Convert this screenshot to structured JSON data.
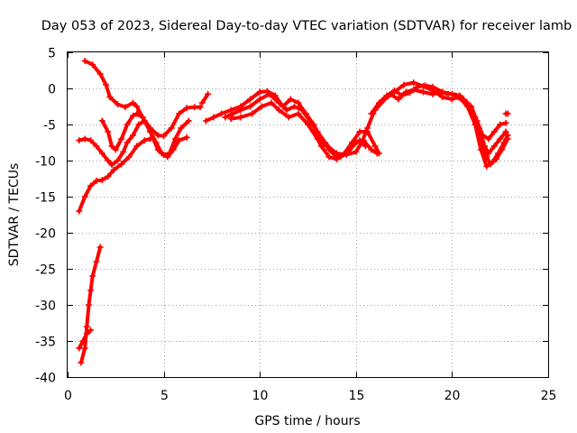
{
  "chart_data": {
    "type": "scatter",
    "title": "Day 053 of 2023, Sidereal Day-to-day VTEC variation (SDTVAR) for receiver lamb",
    "xlabel": "GPS time / hours",
    "ylabel": "SDTVAR / TECUs",
    "xlim": [
      0,
      25
    ],
    "ylim": [
      -40,
      5
    ],
    "xticks": [
      0,
      5,
      10,
      15,
      20,
      25
    ],
    "yticks": [
      5,
      0,
      -5,
      -10,
      -15,
      -20,
      -25,
      -30,
      -35,
      -40
    ],
    "grid": true,
    "color": "#ff0000",
    "marker": "+",
    "series": [
      {
        "name": "s1",
        "points": [
          [
            0.9,
            3.8
          ],
          [
            1.3,
            3.3
          ],
          [
            1.7,
            2.0
          ],
          [
            2.0,
            0.5
          ],
          [
            2.2,
            -1.2
          ],
          [
            2.6,
            -2.2
          ],
          [
            3.0,
            -2.6
          ],
          [
            3.4,
            -2.0
          ],
          [
            3.6,
            -2.5
          ],
          [
            3.9,
            -4.0
          ],
          [
            4.3,
            -5.5
          ],
          [
            4.7,
            -6.5
          ],
          [
            5.0,
            -6.6
          ],
          [
            5.4,
            -5.5
          ],
          [
            5.8,
            -3.5
          ],
          [
            6.2,
            -2.7
          ],
          [
            6.6,
            -2.6
          ],
          [
            6.9,
            -2.6
          ]
        ]
      },
      {
        "name": "s2",
        "points": [
          [
            0.6,
            -17.0
          ],
          [
            0.9,
            -15.0
          ],
          [
            1.2,
            -13.5
          ],
          [
            1.5,
            -12.8
          ],
          [
            1.8,
            -12.7
          ],
          [
            2.1,
            -12.2
          ],
          [
            2.4,
            -11.3
          ],
          [
            2.8,
            -10.5
          ],
          [
            3.2,
            -9.5
          ],
          [
            3.6,
            -8.0
          ],
          [
            4.0,
            -7.2
          ],
          [
            4.3,
            -7.0
          ]
        ]
      },
      {
        "name": "s3",
        "points": [
          [
            0.6,
            -7.2
          ],
          [
            0.9,
            -7.0
          ],
          [
            1.2,
            -7.2
          ],
          [
            1.5,
            -8.0
          ],
          [
            1.8,
            -9.0
          ],
          [
            2.1,
            -10.0
          ],
          [
            2.3,
            -10.6
          ],
          [
            2.6,
            -10.0
          ],
          [
            2.9,
            -8.8
          ],
          [
            3.1,
            -7.5
          ],
          [
            3.4,
            -6.5
          ],
          [
            3.7,
            -5.0
          ],
          [
            4.0,
            -4.5
          ],
          [
            4.3,
            -6.0
          ],
          [
            4.6,
            -7.5
          ],
          [
            4.9,
            -9.0
          ],
          [
            5.2,
            -9.5
          ],
          [
            5.5,
            -8.5
          ],
          [
            5.8,
            -7.2
          ],
          [
            6.2,
            -6.8
          ]
        ]
      },
      {
        "name": "s4",
        "points": [
          [
            1.8,
            -4.5
          ],
          [
            2.1,
            -6.0
          ],
          [
            2.3,
            -8.0
          ],
          [
            2.5,
            -8.5
          ],
          [
            2.8,
            -7.0
          ],
          [
            3.1,
            -5.0
          ],
          [
            3.4,
            -3.8
          ],
          [
            3.6,
            -3.5
          ],
          [
            3.9,
            -4.0
          ],
          [
            4.3,
            -6.0
          ],
          [
            4.7,
            -8.5
          ],
          [
            5.0,
            -9.2
          ],
          [
            5.3,
            -9.0
          ],
          [
            5.6,
            -7.0
          ],
          [
            5.9,
            -5.5
          ],
          [
            6.3,
            -4.5
          ]
        ]
      },
      {
        "name": "s5",
        "points": [
          [
            0.7,
            -38.0
          ],
          [
            0.9,
            -36.0
          ],
          [
            1.0,
            -33.0
          ],
          [
            1.1,
            -30.0
          ],
          [
            1.2,
            -28.0
          ],
          [
            1.3,
            -26.0
          ],
          [
            1.5,
            -24.0
          ],
          [
            1.7,
            -22.0
          ]
        ]
      },
      {
        "name": "s6",
        "points": [
          [
            0.6,
            -36.0
          ],
          [
            0.8,
            -35.0
          ],
          [
            1.0,
            -34.0
          ],
          [
            1.2,
            -33.5
          ]
        ]
      },
      {
        "name": "s7",
        "points": [
          [
            7.0,
            -2.0
          ],
          [
            7.3,
            -0.8
          ]
        ]
      },
      {
        "name": "s8",
        "points": [
          [
            7.2,
            -4.5
          ],
          [
            7.6,
            -4.0
          ],
          [
            8.0,
            -3.5
          ],
          [
            8.5,
            -3.0
          ],
          [
            9.0,
            -2.5
          ],
          [
            9.5,
            -1.5
          ],
          [
            10.0,
            -0.5
          ],
          [
            10.4,
            -0.4
          ],
          [
            10.8,
            -1.0
          ],
          [
            11.2,
            -2.5
          ],
          [
            11.6,
            -1.5
          ],
          [
            12.0,
            -2.0
          ],
          [
            12.4,
            -3.5
          ],
          [
            12.8,
            -5.0
          ],
          [
            13.2,
            -7.0
          ],
          [
            13.6,
            -8.5
          ],
          [
            14.0,
            -9.5
          ],
          [
            14.4,
            -9.0
          ],
          [
            14.8,
            -8.0
          ],
          [
            15.2,
            -7.2
          ],
          [
            15.5,
            -8.0
          ]
        ]
      },
      {
        "name": "s9",
        "points": [
          [
            8.2,
            -4.0
          ],
          [
            8.6,
            -3.5
          ],
          [
            9.0,
            -3.0
          ],
          [
            9.5,
            -2.5
          ],
          [
            10.0,
            -1.5
          ],
          [
            10.5,
            -0.8
          ],
          [
            11.0,
            -2.0
          ],
          [
            11.4,
            -3.0
          ],
          [
            11.8,
            -2.5
          ],
          [
            12.2,
            -3.0
          ],
          [
            12.6,
            -4.5
          ],
          [
            13.0,
            -6.0
          ],
          [
            13.4,
            -7.5
          ],
          [
            13.8,
            -8.8
          ],
          [
            14.2,
            -9.5
          ],
          [
            14.6,
            -8.8
          ],
          [
            15.0,
            -7.5
          ],
          [
            15.4,
            -7.2
          ],
          [
            15.8,
            -8.5
          ],
          [
            16.1,
            -9.0
          ]
        ]
      },
      {
        "name": "s10",
        "points": [
          [
            8.5,
            -4.2
          ],
          [
            9.0,
            -4.0
          ],
          [
            9.6,
            -3.5
          ],
          [
            10.1,
            -2.5
          ],
          [
            10.6,
            -2.0
          ],
          [
            11.0,
            -3.0
          ],
          [
            11.5,
            -4.0
          ],
          [
            12.0,
            -3.5
          ],
          [
            12.5,
            -5.0
          ],
          [
            13.0,
            -7.0
          ],
          [
            13.5,
            -8.0
          ],
          [
            14.0,
            -9.0
          ],
          [
            14.5,
            -9.2
          ],
          [
            15.0,
            -8.8
          ],
          [
            15.3,
            -7.5
          ],
          [
            15.6,
            -5.5
          ],
          [
            15.9,
            -3.5
          ]
        ]
      },
      {
        "name": "s11",
        "points": [
          [
            12.8,
            -6.0
          ],
          [
            13.2,
            -8.0
          ],
          [
            13.6,
            -9.5
          ],
          [
            14.0,
            -9.8
          ],
          [
            14.4,
            -9.0
          ],
          [
            14.8,
            -7.5
          ],
          [
            15.2,
            -6.0
          ],
          [
            15.6,
            -6.0
          ],
          [
            16.0,
            -8.0
          ],
          [
            16.2,
            -9.0
          ]
        ]
      },
      {
        "name": "s12",
        "points": [
          [
            15.8,
            -3.5
          ],
          [
            16.2,
            -2.0
          ],
          [
            16.6,
            -1.0
          ],
          [
            17.0,
            -0.3
          ],
          [
            17.4,
            -1.0
          ],
          [
            17.8,
            -0.6
          ],
          [
            18.2,
            0.2
          ],
          [
            18.6,
            0.4
          ],
          [
            19.0,
            0.2
          ],
          [
            19.5,
            -0.5
          ],
          [
            20.0,
            -0.8
          ],
          [
            20.4,
            -1.0
          ]
        ]
      },
      {
        "name": "s13",
        "points": [
          [
            16.0,
            -3.0
          ],
          [
            16.5,
            -1.5
          ],
          [
            17.0,
            -0.5
          ],
          [
            17.5,
            0.5
          ],
          [
            18.0,
            0.8
          ],
          [
            18.5,
            0.3
          ],
          [
            19.0,
            -0.3
          ],
          [
            19.5,
            -1.2
          ],
          [
            20.0,
            -1.5
          ],
          [
            20.3,
            -1.2
          ]
        ]
      },
      {
        "name": "s14",
        "points": [
          [
            16.3,
            -2.0
          ],
          [
            16.8,
            -0.8
          ],
          [
            17.2,
            -1.5
          ],
          [
            17.6,
            -0.5
          ],
          [
            18.0,
            -0.2
          ],
          [
            18.5,
            -0.5
          ],
          [
            19.0,
            -0.8
          ],
          [
            19.4,
            -0.5
          ],
          [
            19.8,
            -0.8
          ]
        ]
      },
      {
        "name": "s15",
        "points": [
          [
            20.0,
            -0.8
          ],
          [
            20.4,
            -1.0
          ],
          [
            20.8,
            -2.0
          ],
          [
            21.2,
            -4.0
          ],
          [
            21.5,
            -7.0
          ],
          [
            21.8,
            -9.5
          ],
          [
            22.0,
            -10.5
          ],
          [
            22.3,
            -9.8
          ],
          [
            22.6,
            -8.5
          ],
          [
            22.9,
            -7.0
          ]
        ]
      },
      {
        "name": "s16",
        "points": [
          [
            20.2,
            -1.0
          ],
          [
            20.6,
            -1.5
          ],
          [
            21.0,
            -3.0
          ],
          [
            21.4,
            -5.5
          ],
          [
            21.7,
            -8.0
          ],
          [
            21.9,
            -9.0
          ],
          [
            22.2,
            -8.0
          ],
          [
            22.5,
            -7.0
          ],
          [
            22.8,
            -6.0
          ]
        ]
      },
      {
        "name": "s17",
        "points": [
          [
            20.4,
            -1.3
          ],
          [
            20.8,
            -2.5
          ],
          [
            21.2,
            -5.0
          ],
          [
            21.5,
            -8.5
          ],
          [
            21.8,
            -10.8
          ],
          [
            22.1,
            -10.2
          ],
          [
            22.4,
            -9.0
          ],
          [
            22.7,
            -7.5
          ],
          [
            22.9,
            -6.5
          ]
        ]
      },
      {
        "name": "s18",
        "points": [
          [
            21.0,
            -2.5
          ],
          [
            21.3,
            -4.5
          ],
          [
            21.6,
            -6.5
          ],
          [
            21.9,
            -7.0
          ],
          [
            22.2,
            -6.0
          ],
          [
            22.5,
            -5.0
          ],
          [
            22.8,
            -4.8
          ]
        ]
      },
      {
        "name": "s19",
        "points": [
          [
            22.8,
            -3.5
          ],
          [
            22.9,
            -3.5
          ]
        ]
      }
    ]
  }
}
